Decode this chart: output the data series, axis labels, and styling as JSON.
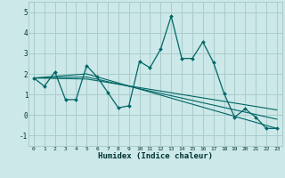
{
  "background_color": "#cce8e8",
  "grid_color": "#aacccc",
  "line_color": "#006666",
  "x_label": "Humidex (Indice chaleur)",
  "ylim": [
    -1.5,
    5.5
  ],
  "xlim": [
    -0.5,
    23.5
  ],
  "yticks": [
    -1,
    0,
    1,
    2,
    3,
    4,
    5
  ],
  "xticks": [
    0,
    1,
    2,
    3,
    4,
    5,
    6,
    7,
    8,
    9,
    10,
    11,
    12,
    13,
    14,
    15,
    16,
    17,
    18,
    19,
    20,
    21,
    22,
    23
  ],
  "series1": {
    "x": [
      0,
      1,
      2,
      3,
      4,
      5,
      6,
      7,
      8,
      9,
      10,
      11,
      12,
      13,
      14,
      15,
      16,
      17,
      18,
      19,
      20,
      21,
      22,
      23
    ],
    "y": [
      1.8,
      1.4,
      2.1,
      0.75,
      0.75,
      2.4,
      1.85,
      1.1,
      0.35,
      0.45,
      2.6,
      2.3,
      3.2,
      4.8,
      2.75,
      2.75,
      3.55,
      2.55,
      1.05,
      -0.1,
      0.3,
      -0.1,
      -0.65,
      -0.65
    ]
  },
  "series2": {
    "x": [
      0,
      5,
      23
    ],
    "y": [
      1.8,
      2.0,
      -0.65
    ]
  },
  "series3": {
    "x": [
      0,
      5,
      23
    ],
    "y": [
      1.8,
      1.85,
      -0.2
    ]
  },
  "series4": {
    "x": [
      0,
      5,
      23
    ],
    "y": [
      1.8,
      1.75,
      0.25
    ]
  }
}
